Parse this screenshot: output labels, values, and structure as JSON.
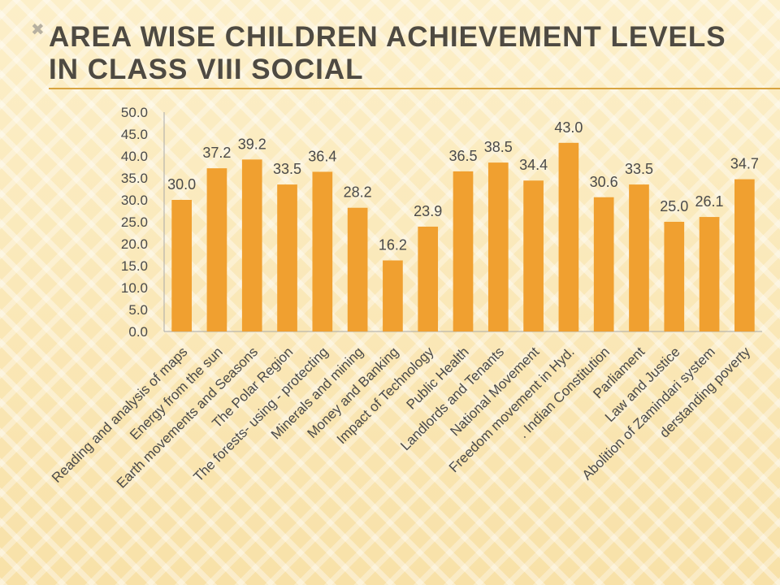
{
  "slide": {
    "bullet_icon": "x-bullet-icon",
    "title": "Area wise children achievement levels in class VIII social"
  },
  "colors": {
    "bar": "#f0a030",
    "text": "#4a4a4a",
    "axis": "#a8a8a8"
  },
  "chart_data": {
    "type": "bar",
    "title": "",
    "xlabel": "",
    "ylabel": "",
    "ylim": [
      0,
      50
    ],
    "yticks": [
      "0.0",
      "5.0",
      "10.0",
      "15.0",
      "20.0",
      "25.0",
      "30.0",
      "35.0",
      "40.0",
      "45.0",
      "50.0"
    ],
    "grid": false,
    "legend": "none",
    "categories": [
      "Reading and analysis of maps",
      "Energy from the sun",
      "Earth movements and Seasons",
      "The Polar Region",
      "The forests- using - protecting",
      "Minerals and mining",
      "Money and Banking",
      "Impact of Technology",
      "Public Health",
      "Landlords and Tenants",
      "National Movement",
      "Freedom movement in Hyd.",
      ". Indian Constitution",
      "Parliament",
      "Law and Justice",
      "Abolition of Zamindari system",
      "derstanding poverty"
    ],
    "values": [
      30.0,
      37.2,
      39.2,
      33.5,
      36.4,
      28.2,
      16.2,
      23.9,
      36.5,
      38.5,
      34.4,
      43.0,
      30.6,
      33.5,
      25.0,
      26.1,
      34.7
    ],
    "data_labels": [
      "30.0",
      "37.2",
      "39.2",
      "33.5",
      "36.4",
      "28.2",
      "16.2",
      "23.9",
      "36.5",
      "38.5",
      "34.4",
      "43.0",
      "30.6",
      "33.5",
      "25.0",
      "26.1",
      "34.7"
    ]
  }
}
